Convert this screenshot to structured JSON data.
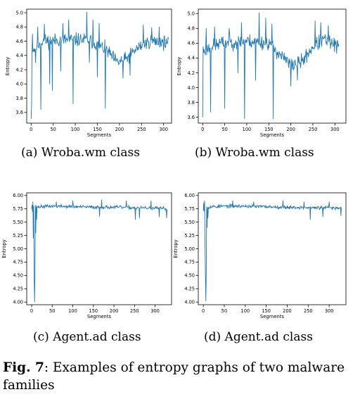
{
  "figure": {
    "fig_label": "Fig. 7",
    "caption": ": Examples of entropy graphs of two malware families"
  },
  "chart_data": [
    {
      "type": "line",
      "caption": "(a) Wroba.wm class",
      "xlabel": "Segments",
      "ylabel": "Entropy",
      "xlim": [
        -10,
        318
      ],
      "ylim": [
        3.45,
        5.05
      ],
      "xticks": [
        0,
        50,
        100,
        150,
        200,
        250,
        300
      ],
      "yticks": [
        3.6,
        3.8,
        4.0,
        4.2,
        4.4,
        4.6,
        4.8,
        5.0
      ],
      "ytick_labels": [
        "3.6",
        "3.8",
        "4.0",
        "4.2",
        "4.4",
        "4.6",
        "4.8",
        "5.0"
      ],
      "color": "#1f77b4",
      "series_name": "",
      "n_points": 312,
      "baseline": [
        [
          0,
          4.45
        ],
        [
          25,
          4.6
        ],
        [
          75,
          4.62
        ],
        [
          130,
          4.62
        ],
        [
          170,
          4.48
        ],
        [
          195,
          4.3
        ],
        [
          215,
          4.35
        ],
        [
          240,
          4.5
        ],
        [
          270,
          4.6
        ],
        [
          310,
          4.58
        ]
      ],
      "amplitude": 0.14,
      "dips": [
        [
          0,
          3.51
        ],
        [
          1,
          3.7
        ],
        [
          10,
          4.3
        ],
        [
          22,
          3.64
        ],
        [
          42,
          4.0
        ],
        [
          48,
          3.91
        ],
        [
          67,
          4.18
        ],
        [
          95,
          3.72
        ],
        [
          132,
          4.3
        ],
        [
          150,
          4.1
        ],
        [
          168,
          3.66
        ],
        [
          208,
          4.08
        ],
        [
          224,
          4.12
        ]
      ],
      "peaks": [
        [
          3,
          4.7
        ],
        [
          15,
          4.8
        ],
        [
          30,
          4.84
        ],
        [
          72,
          4.85
        ],
        [
          85,
          4.9
        ],
        [
          126,
          5.01
        ],
        [
          140,
          4.9
        ],
        [
          154,
          4.85
        ],
        [
          254,
          4.83
        ],
        [
          273,
          4.79
        ],
        [
          290,
          4.8
        ]
      ],
      "seed": 11
    },
    {
      "type": "line",
      "caption": "(b) Wroba.wm class",
      "xlabel": "Segments",
      "ylabel": "Entropy",
      "xlim": [
        -10,
        325
      ],
      "ylim": [
        3.52,
        5.06
      ],
      "xticks": [
        0,
        50,
        100,
        150,
        200,
        250,
        300
      ],
      "yticks": [
        3.6,
        3.8,
        4.0,
        4.2,
        4.4,
        4.6,
        4.8,
        5.0
      ],
      "ytick_labels": [
        "3.6",
        "3.8",
        "4.0",
        "4.2",
        "4.4",
        "4.6",
        "4.8",
        "5.0"
      ],
      "color": "#1f77b4",
      "series_name": "",
      "n_points": 310,
      "baseline": [
        [
          0,
          4.5
        ],
        [
          40,
          4.6
        ],
        [
          100,
          4.63
        ],
        [
          150,
          4.6
        ],
        [
          175,
          4.45
        ],
        [
          200,
          4.3
        ],
        [
          225,
          4.35
        ],
        [
          250,
          4.55
        ],
        [
          275,
          4.65
        ],
        [
          308,
          4.55
        ]
      ],
      "amplitude": 0.14,
      "dips": [
        [
          0,
          3.6
        ],
        [
          18,
          3.67
        ],
        [
          50,
          3.72
        ],
        [
          80,
          4.2
        ],
        [
          95,
          3.58
        ],
        [
          120,
          4.1
        ],
        [
          160,
          3.58
        ],
        [
          200,
          4.02
        ],
        [
          215,
          4.1
        ],
        [
          304,
          4.46
        ]
      ],
      "peaks": [
        [
          8,
          4.8
        ],
        [
          27,
          4.82
        ],
        [
          60,
          4.8
        ],
        [
          88,
          4.88
        ],
        [
          128,
          5.01
        ],
        [
          143,
          4.94
        ],
        [
          157,
          4.86
        ],
        [
          255,
          4.9
        ],
        [
          268,
          4.88
        ],
        [
          285,
          4.84
        ]
      ],
      "seed": 23
    },
    {
      "type": "line",
      "caption": "(c) Agent.ad class",
      "xlabel": "Segments",
      "ylabel": "Entropy",
      "xlim": [
        -12,
        340
      ],
      "ylim": [
        3.95,
        6.05
      ],
      "xticks": [
        0,
        50,
        100,
        150,
        200,
        250,
        300
      ],
      "yticks": [
        4.0,
        4.25,
        4.5,
        4.75,
        5.0,
        5.25,
        5.5,
        5.75,
        6.0
      ],
      "ytick_labels": [
        "4.00",
        "4.25",
        "4.50",
        "4.75",
        "5.00",
        "5.25",
        "5.50",
        "5.75",
        "6.00"
      ],
      "color": "#1f77b4",
      "series_name": "",
      "n_points": 330,
      "baseline": [
        [
          0,
          5.78
        ],
        [
          50,
          5.8
        ],
        [
          100,
          5.79
        ],
        [
          150,
          5.78
        ],
        [
          200,
          5.78
        ],
        [
          250,
          5.77
        ],
        [
          300,
          5.76
        ],
        [
          329,
          5.75
        ]
      ],
      "amplitude": 0.05,
      "dips": [
        [
          0,
          5.75
        ],
        [
          1,
          5.82
        ],
        [
          2,
          5.7
        ],
        [
          4,
          5.2
        ],
        [
          6,
          4.6
        ],
        [
          7,
          4.0
        ],
        [
          8,
          4.5
        ],
        [
          10,
          5.3
        ],
        [
          12,
          5.55
        ],
        [
          165,
          5.61
        ],
        [
          252,
          5.55
        ],
        [
          262,
          5.58
        ],
        [
          310,
          5.6
        ],
        [
          328,
          5.58
        ]
      ],
      "peaks": [
        [
          3,
          5.88
        ],
        [
          60,
          5.88
        ],
        [
          100,
          5.9
        ],
        [
          170,
          5.92
        ],
        [
          230,
          5.9
        ],
        [
          290,
          5.9
        ]
      ],
      "seed": 37
    },
    {
      "type": "line",
      "caption": "(d) Agent.ad class",
      "xlabel": "Segments",
      "ylabel": "Entropy",
      "xlim": [
        -12,
        340
      ],
      "ylim": [
        3.95,
        6.05
      ],
      "xticks": [
        0,
        50,
        100,
        150,
        200,
        250,
        300
      ],
      "yticks": [
        4.0,
        4.25,
        4.5,
        4.75,
        5.0,
        5.25,
        5.5,
        5.75,
        6.0
      ],
      "ytick_labels": [
        "4.00",
        "4.25",
        "4.50",
        "4.75",
        "5.00",
        "5.25",
        "5.50",
        "5.75",
        "6.00"
      ],
      "color": "#1f77b4",
      "series_name": "",
      "n_points": 330,
      "baseline": [
        [
          0,
          5.78
        ],
        [
          50,
          5.8
        ],
        [
          100,
          5.8
        ],
        [
          150,
          5.79
        ],
        [
          200,
          5.78
        ],
        [
          250,
          5.77
        ],
        [
          300,
          5.77
        ],
        [
          329,
          5.76
        ]
      ],
      "amplitude": 0.05,
      "dips": [
        [
          0,
          5.72
        ],
        [
          1,
          5.86
        ],
        [
          2,
          5.7
        ],
        [
          4,
          5.1
        ],
        [
          5,
          4.5
        ],
        [
          6,
          4.02
        ],
        [
          7,
          4.6
        ],
        [
          9,
          5.4
        ],
        [
          11,
          5.58
        ],
        [
          255,
          5.55
        ],
        [
          285,
          5.6
        ],
        [
          328,
          5.62
        ]
      ],
      "peaks": [
        [
          3,
          5.9
        ],
        [
          70,
          5.9
        ],
        [
          120,
          5.88
        ],
        [
          190,
          5.9
        ],
        [
          240,
          5.88
        ],
        [
          300,
          5.88
        ]
      ],
      "seed": 53
    }
  ]
}
